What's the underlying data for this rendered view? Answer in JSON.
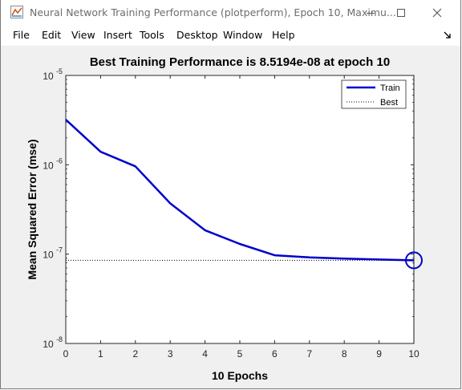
{
  "window": {
    "title": "Neural Network Training Performance (plotperform), Epoch 10, Maximu...",
    "buttons": {
      "minimize": "minimize-icon",
      "maximize": "maximize-icon",
      "close": "close-icon"
    }
  },
  "menu": [
    "File",
    "Edit",
    "View",
    "Insert",
    "Tools",
    "Desktop",
    "Window",
    "Help"
  ],
  "chart_data": {
    "type": "line",
    "title": "Best Training Performance is 8.5194e-08 at epoch 10",
    "xlabel": "10 Epochs",
    "ylabel": "Mean Squared Error  (mse)",
    "yscale": "log",
    "xlim": [
      0,
      10
    ],
    "ylim": [
      1e-08,
      1e-05
    ],
    "x_ticks": [
      "0",
      "1",
      "2",
      "3",
      "4",
      "5",
      "6",
      "7",
      "8",
      "9",
      "10"
    ],
    "y_ticks": [
      {
        "base": "10",
        "exp": "-8",
        "value": 1e-08
      },
      {
        "base": "10",
        "exp": "-7",
        "value": 1e-07
      },
      {
        "base": "10",
        "exp": "-6",
        "value": 1e-06
      },
      {
        "base": "10",
        "exp": "-5",
        "value": 1e-05
      }
    ],
    "series": [
      {
        "name": "Train",
        "color": "#0000cc",
        "style": "solid",
        "x": [
          0,
          1,
          2,
          3,
          4,
          5,
          6,
          7,
          8,
          9,
          10
        ],
        "y": [
          3.2e-06,
          1.4e-06,
          9.6e-07,
          3.7e-07,
          1.85e-07,
          1.3e-07,
          9.7e-08,
          9.2e-08,
          8.9e-08,
          8.7e-08,
          8.5194e-08
        ]
      },
      {
        "name": "Best",
        "color": "#000000",
        "style": "dotted",
        "y_value": 8.5194e-08,
        "x_value": 10
      }
    ],
    "best_point": {
      "x": 10,
      "y": 8.5194e-08
    },
    "legend_position": "top-right",
    "grid": false
  }
}
